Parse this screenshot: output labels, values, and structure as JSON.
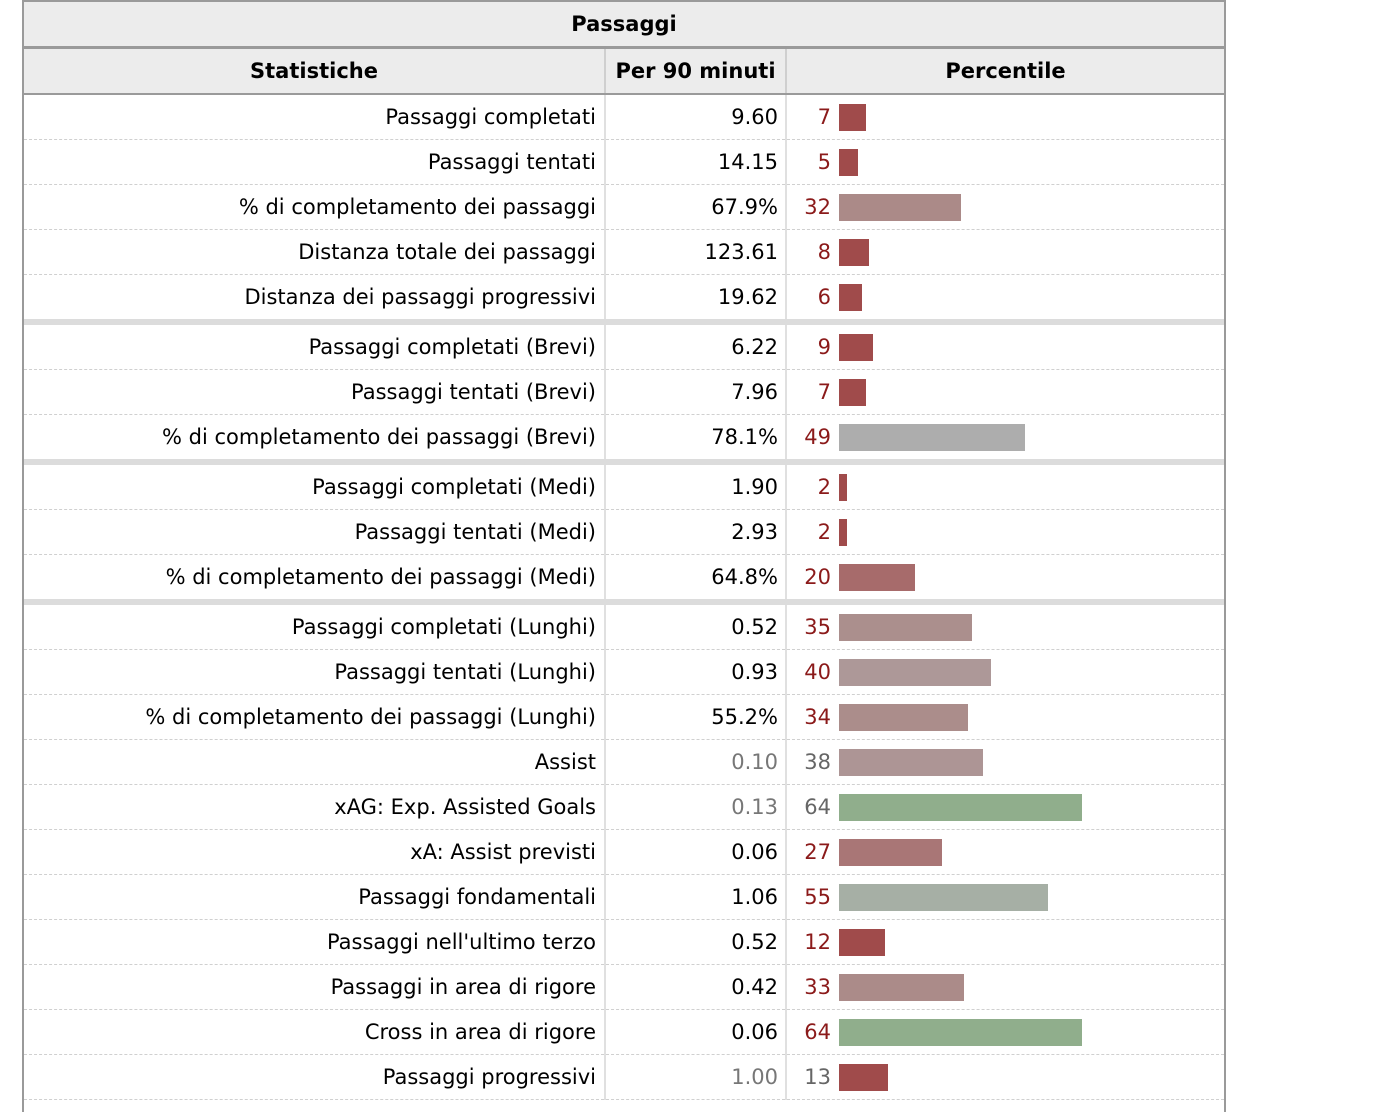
{
  "table": {
    "title": "Passaggi",
    "headers": [
      "Statistiche",
      "Per 90 minuti",
      "Percentile"
    ],
    "rows": [
      {
        "stat": "Passaggi completati",
        "value": "9.60",
        "percentile": 7,
        "color": "#a04b4b",
        "muted": false,
        "pct_muted": false,
        "sep": false
      },
      {
        "stat": "Passaggi tentati",
        "value": "14.15",
        "percentile": 5,
        "color": "#a04b4b",
        "muted": false,
        "pct_muted": false,
        "sep": false
      },
      {
        "stat": "% di completamento dei passaggi",
        "value": "67.9%",
        "percentile": 32,
        "color": "#ab8a88",
        "muted": false,
        "pct_muted": false,
        "sep": false
      },
      {
        "stat": "Distanza totale dei passaggi",
        "value": "123.61",
        "percentile": 8,
        "color": "#a04b4b",
        "muted": false,
        "pct_muted": false,
        "sep": false
      },
      {
        "stat": "Distanza dei passaggi progressivi",
        "value": "19.62",
        "percentile": 6,
        "color": "#a04b4b",
        "muted": false,
        "pct_muted": false,
        "sep": false
      },
      {
        "stat": "Passaggi completati (Brevi)",
        "value": "6.22",
        "percentile": 9,
        "color": "#a04b4b",
        "muted": false,
        "pct_muted": false,
        "sep": true
      },
      {
        "stat": "Passaggi tentati (Brevi)",
        "value": "7.96",
        "percentile": 7,
        "color": "#a04b4b",
        "muted": false,
        "pct_muted": false,
        "sep": false
      },
      {
        "stat": "% di completamento dei passaggi (Brevi)",
        "value": "78.1%",
        "percentile": 49,
        "color": "#adadad",
        "muted": false,
        "pct_muted": false,
        "sep": false
      },
      {
        "stat": "Passaggi completati (Medi)",
        "value": "1.90",
        "percentile": 2,
        "color": "#a04b4b",
        "muted": false,
        "pct_muted": false,
        "sep": true
      },
      {
        "stat": "Passaggi tentati (Medi)",
        "value": "2.93",
        "percentile": 2,
        "color": "#a04b4b",
        "muted": false,
        "pct_muted": false,
        "sep": false
      },
      {
        "stat": "% di completamento dei passaggi (Medi)",
        "value": "64.8%",
        "percentile": 20,
        "color": "#a76b6b",
        "muted": false,
        "pct_muted": false,
        "sep": false
      },
      {
        "stat": "Passaggi completati (Lunghi)",
        "value": "0.52",
        "percentile": 35,
        "color": "#ab8f8d",
        "muted": false,
        "pct_muted": false,
        "sep": true
      },
      {
        "stat": "Passaggi tentati (Lunghi)",
        "value": "0.93",
        "percentile": 40,
        "color": "#ad9898",
        "muted": false,
        "pct_muted": false,
        "sep": false
      },
      {
        "stat": "% di completamento dei passaggi (Lunghi)",
        "value": "55.2%",
        "percentile": 34,
        "color": "#ab8d8b",
        "muted": false,
        "pct_muted": false,
        "sep": false
      },
      {
        "stat": "Assist",
        "value": "0.10",
        "percentile": 38,
        "color": "#ad9595",
        "muted": true,
        "pct_muted": true,
        "sep": false
      },
      {
        "stat": "xAG: Exp. Assisted Goals",
        "value": "0.13",
        "percentile": 64,
        "color": "#90ae8c",
        "muted": true,
        "pct_muted": true,
        "sep": false
      },
      {
        "stat": "xA: Assist previsti",
        "value": "0.06",
        "percentile": 27,
        "color": "#a97676",
        "muted": false,
        "pct_muted": false,
        "sep": false
      },
      {
        "stat": "Passaggi fondamentali",
        "value": "1.06",
        "percentile": 55,
        "color": "#a6afa5",
        "muted": false,
        "pct_muted": false,
        "sep": false
      },
      {
        "stat": "Passaggi nell'ultimo terzo",
        "value": "0.52",
        "percentile": 12,
        "color": "#a04b4b",
        "muted": false,
        "pct_muted": false,
        "sep": false
      },
      {
        "stat": "Passaggi in area di rigore",
        "value": "0.42",
        "percentile": 33,
        "color": "#ab8b89",
        "muted": false,
        "pct_muted": false,
        "sep": false
      },
      {
        "stat": "Cross in area di rigore",
        "value": "0.06",
        "percentile": 64,
        "color": "#90ae8c",
        "muted": false,
        "pct_muted": false,
        "sep": false
      },
      {
        "stat": "Passaggi progressivi",
        "value": "1.00",
        "percentile": 13,
        "color": "#a04b4b",
        "muted": true,
        "pct_muted": true,
        "sep": false
      }
    ]
  }
}
